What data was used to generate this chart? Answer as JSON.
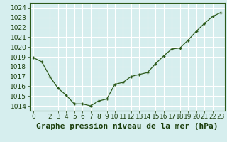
{
  "x": [
    0,
    1,
    2,
    3,
    4,
    5,
    6,
    7,
    8,
    9,
    10,
    11,
    12,
    13,
    14,
    15,
    16,
    17,
    18,
    19,
    20,
    21,
    22,
    23
  ],
  "y": [
    1018.9,
    1018.5,
    1017.0,
    1015.8,
    1015.1,
    1014.2,
    1014.2,
    1014.0,
    1014.5,
    1014.7,
    1016.2,
    1016.4,
    1017.0,
    1017.2,
    1017.4,
    1018.3,
    1019.1,
    1019.8,
    1019.9,
    1020.7,
    1021.6,
    1022.4,
    1023.1,
    1023.5
  ],
  "line_color": "#2d5a1b",
  "marker": "+",
  "bg_color": "#d6eeee",
  "grid_color": "#b0d8d8",
  "title": "Graphe pression niveau de la mer (hPa)",
  "ylim": [
    1013.5,
    1024.5
  ],
  "xlim": [
    -0.5,
    23.5
  ],
  "yticks": [
    1014,
    1015,
    1016,
    1017,
    1018,
    1019,
    1020,
    1021,
    1022,
    1023,
    1024
  ],
  "xticks": [
    0,
    2,
    3,
    4,
    5,
    6,
    7,
    8,
    9,
    10,
    11,
    12,
    13,
    14,
    15,
    16,
    17,
    18,
    19,
    20,
    21,
    22,
    23
  ],
  "title_fontsize": 8,
  "tick_fontsize": 6.5,
  "title_color": "#1a3d0a",
  "tick_color": "#1a3d0a",
  "spine_color": "#2d5a1b"
}
